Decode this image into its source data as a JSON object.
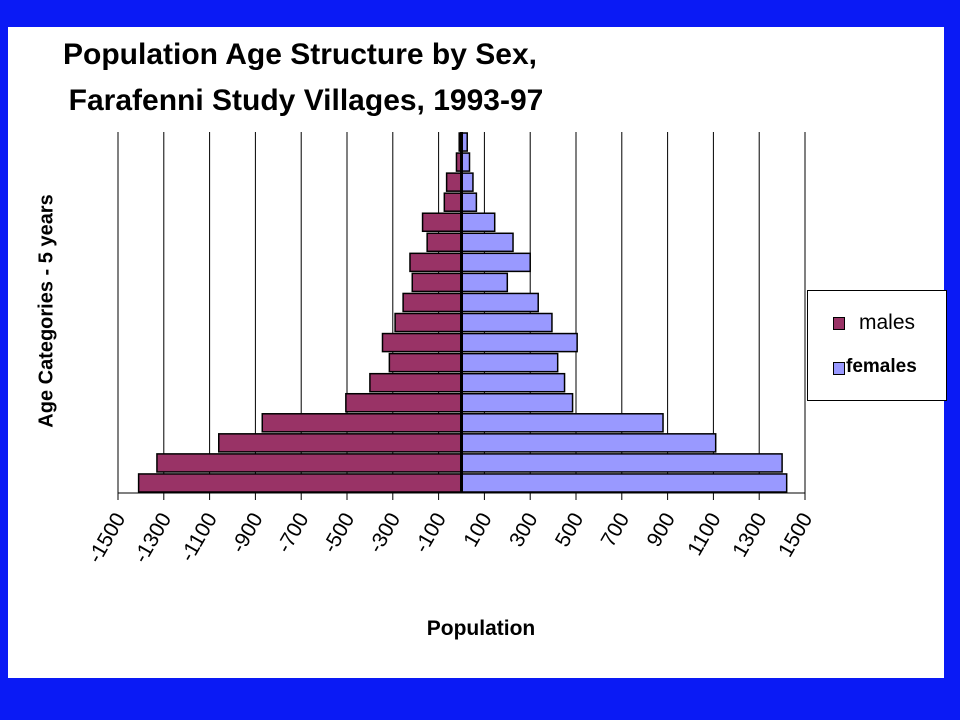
{
  "title_line1": "Population Age Structure by Sex,",
  "title_line2": "Farafenni Study Villages, 1993-97",
  "chart_data": {
    "type": "bar",
    "orientation": "horizontal",
    "title": "Population Age Structure by Sex, Farafenni Study Villages, 1993-97",
    "xlabel": "Population",
    "ylabel": "Age Categories - 5 years",
    "xlim": [
      -1500,
      1500
    ],
    "x_ticks": [
      "-1500",
      "-1300",
      "-1100",
      "-900",
      "-700",
      "-500",
      "-300",
      "-100",
      "100",
      "300",
      "500",
      "700",
      "900",
      "1100",
      "1300",
      "1500"
    ],
    "grid": "vertical",
    "legend_position": "right",
    "category_count": 18,
    "series": [
      {
        "name": "males",
        "color": "#993366",
        "values": [
          -1410,
          -1330,
          -1060,
          -870,
          -505,
          -400,
          -315,
          -345,
          -290,
          -255,
          -215,
          -225,
          -150,
          -170,
          -75,
          -65,
          -22,
          -10
        ]
      },
      {
        "name": "females",
        "color": "#9999ff",
        "values": [
          1420,
          1400,
          1110,
          880,
          485,
          450,
          420,
          505,
          395,
          335,
          200,
          300,
          225,
          145,
          65,
          50,
          35,
          25
        ]
      }
    ]
  },
  "legend": {
    "males": "males",
    "females": "females"
  }
}
